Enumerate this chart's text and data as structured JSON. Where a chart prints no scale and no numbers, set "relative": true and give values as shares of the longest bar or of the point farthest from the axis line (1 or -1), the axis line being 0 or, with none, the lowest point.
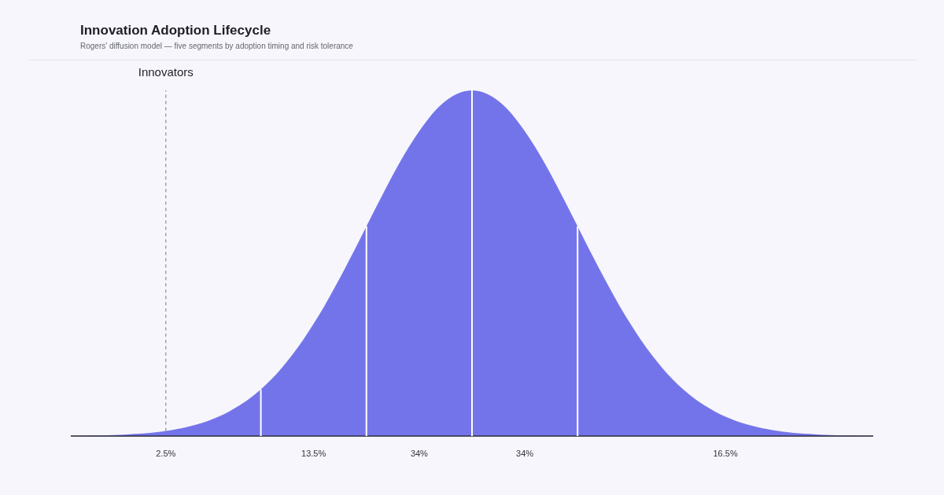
{
  "chart_data": {
    "type": "area",
    "title": "Innovation Adoption Lifecycle",
    "subtitle": "Rogers' diffusion model — five segments by adoption timing and risk tolerance",
    "relative": true,
    "categories": [
      null,
      null,
      null,
      null,
      null,
      null,
      null,
      null,
      null,
      "2.5%",
      null,
      null,
      null,
      null,
      null,
      null,
      null,
      null,
      null,
      null,
      null,
      null,
      null,
      "13.5%",
      null,
      null,
      null,
      null,
      null,
      null,
      null,
      null,
      null,
      "34%",
      null,
      null,
      null,
      null,
      null,
      null,
      null,
      null,
      null,
      "34%",
      null,
      null,
      null,
      null,
      null,
      null,
      null,
      null,
      null,
      null,
      null,
      null,
      null,
      null,
      null,
      null,
      null,
      null,
      "16.5%",
      null,
      null,
      null,
      null,
      null,
      null,
      null,
      null,
      null,
      null,
      null,
      null,
      null,
      null
    ],
    "series": [
      {
        "color": "#7474ea",
        "values": [
          0.001,
          0.001,
          0.002,
          0.002,
          0.003,
          0.004,
          0.006,
          0.008,
          0.011,
          0.015,
          0.02,
          0.026,
          0.034,
          0.044,
          0.056,
          0.071,
          0.089,
          0.11,
          0.135,
          null,
          null,
          null,
          null,
          null,
          null,
          null,
          null,
          null,
          null,
          null,
          null,
          null,
          null,
          null,
          null,
          null,
          null,
          null,
          null,
          null,
          null,
          null,
          null,
          null,
          null,
          null,
          null,
          null,
          null,
          null,
          null,
          null,
          null,
          null,
          null,
          null,
          null,
          null,
          null,
          null,
          null,
          null,
          null,
          null,
          null,
          null,
          null,
          null,
          null,
          null,
          null,
          null,
          null,
          null,
          null,
          null,
          null
        ]
      },
      {
        "color": "#7474ea",
        "values": [
          null,
          null,
          null,
          null,
          null,
          null,
          null,
          null,
          null,
          null,
          null,
          null,
          null,
          null,
          null,
          null,
          null,
          null,
          0.135,
          0.164,
          0.198,
          0.236,
          0.278,
          0.325,
          0.375,
          0.43,
          0.487,
          0.546,
          0.607,
          null,
          null,
          null,
          null,
          null,
          null,
          null,
          null,
          null,
          null,
          null,
          null,
          null,
          null,
          null,
          null,
          null,
          null,
          null,
          null,
          null,
          null,
          null,
          null,
          null,
          null,
          null,
          null,
          null,
          null,
          null,
          null,
          null,
          null,
          null,
          null,
          null,
          null,
          null,
          null,
          null,
          null,
          null,
          null,
          null,
          null,
          null,
          null
        ]
      },
      {
        "color": "#7474ea",
        "values": [
          null,
          null,
          null,
          null,
          null,
          null,
          null,
          null,
          null,
          null,
          null,
          null,
          null,
          null,
          null,
          null,
          null,
          null,
          null,
          null,
          null,
          null,
          null,
          null,
          null,
          null,
          null,
          null,
          0.607,
          0.667,
          0.726,
          0.783,
          0.835,
          0.882,
          0.923,
          0.956,
          0.98,
          0.995,
          1,
          null,
          null,
          null,
          null,
          null,
          null,
          null,
          null,
          null,
          null,
          null,
          null,
          null,
          null,
          null,
          null,
          null,
          null,
          null,
          null,
          null,
          null,
          null,
          null,
          null,
          null,
          null,
          null,
          null,
          null,
          null,
          null,
          null,
          null,
          null,
          null,
          null,
          null
        ]
      },
      {
        "color": "#7474ea",
        "values": [
          null,
          null,
          null,
          null,
          null,
          null,
          null,
          null,
          null,
          null,
          null,
          null,
          null,
          null,
          null,
          null,
          null,
          null,
          null,
          null,
          null,
          null,
          null,
          null,
          null,
          null,
          null,
          null,
          null,
          null,
          null,
          null,
          null,
          null,
          null,
          null,
          null,
          null,
          1,
          0.995,
          0.98,
          0.956,
          0.923,
          0.882,
          0.835,
          0.783,
          0.726,
          0.667,
          0.607,
          null,
          null,
          null,
          null,
          null,
          null,
          null,
          null,
          null,
          null,
          null,
          null,
          null,
          null,
          null,
          null,
          null,
          null,
          null,
          null,
          null,
          null,
          null,
          null,
          null,
          null,
          null,
          null
        ]
      },
      {
        "color": "#7474ea",
        "values": [
          null,
          null,
          null,
          null,
          null,
          null,
          null,
          null,
          null,
          null,
          null,
          null,
          null,
          null,
          null,
          null,
          null,
          null,
          null,
          null,
          null,
          null,
          null,
          null,
          null,
          null,
          null,
          null,
          null,
          null,
          null,
          null,
          null,
          null,
          null,
          null,
          null,
          null,
          null,
          null,
          null,
          null,
          null,
          null,
          null,
          null,
          null,
          null,
          0.607,
          0.546,
          0.487,
          0.43,
          0.375,
          0.325,
          0.278,
          0.236,
          0.198,
          0.164,
          0.135,
          0.11,
          0.089,
          0.071,
          0.056,
          0.044,
          0.034,
          0.026,
          0.02,
          0.015,
          0.011,
          0.008,
          0.006,
          0.004,
          0.003,
          0.002,
          0.002,
          0.001,
          0.001
        ]
      }
    ],
    "ref_lines": [
      {
        "axis": "x",
        "value": "2.5%",
        "label": "Innovators",
        "color": "#8a8a92",
        "line_style": "dashed"
      }
    ]
  }
}
